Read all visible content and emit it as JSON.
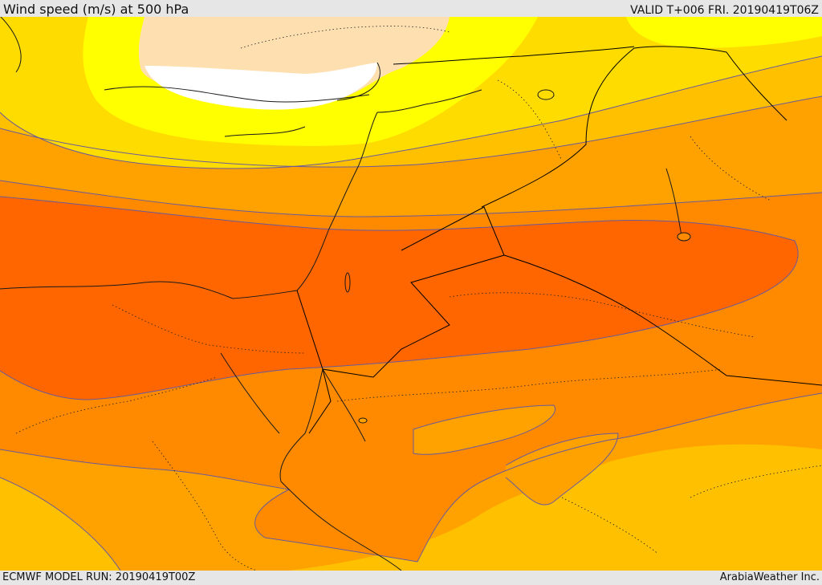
{
  "header": {
    "title": "Wind speed (m/s) at 500 hPa",
    "valid": "VALID T+006 FRI. 20190419T06Z"
  },
  "footer": {
    "model_run": "ECMWF MODEL RUN: 20190419T00Z",
    "provider": "ArabiaWeather Inc."
  },
  "map": {
    "variable": "wind-speed",
    "pressure_level_hpa": 500,
    "units": "m/s",
    "region": "eastern-mediterranean-middle-east",
    "colors": {
      "lowest": "#ffffff",
      "very_low": "#fddfb0",
      "low": "#ffff00",
      "low_mid": "#ffdc00",
      "mid": "#ffc000",
      "mid_high": "#ffa200",
      "high": "#ff8a00",
      "very_high": "#ff6600",
      "contour": "#6a5a9a",
      "border": "#000000"
    }
  }
}
